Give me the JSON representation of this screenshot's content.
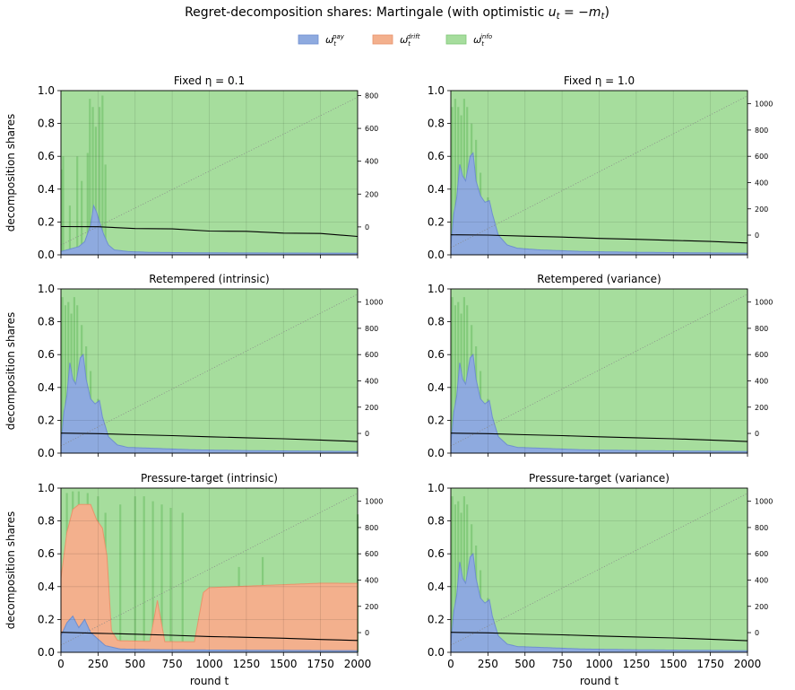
{
  "title": "Regret-decomposition shares: Martingale (with optimistic u_t = −m_t)",
  "title_parts": {
    "prefix": "Regret-decomposition shares: Martingale (with optimistic ",
    "u": "u",
    "t": "t",
    "eq": " = −",
    "m": "m",
    "t2": "t",
    "close": ")"
  },
  "legend": [
    {
      "symbol": "ω",
      "sub": "t",
      "sup": "pay",
      "color": "#8eaadf"
    },
    {
      "symbol": "ω",
      "sub": "t",
      "sup": "drift",
      "color": "#f3b08d"
    },
    {
      "symbol": "ω",
      "sub": "t",
      "sup": "info",
      "color": "#a6dd9d"
    }
  ],
  "colors": {
    "pay": "#8eaadf",
    "pay_edge": "#6f8fd0",
    "drift": "#f3b08d",
    "drift_edge": "#e9946c",
    "info": "#a6dd9d",
    "info_edge": "#7fc877",
    "line": "#000000",
    "dotted": "#888888"
  },
  "ylabel": "decomposition shares",
  "xlabel": "round t",
  "chart_data": [
    {
      "type": "area",
      "title": "Fixed η = 0.1",
      "xlim": [
        0,
        2000
      ],
      "ylim": [
        0,
        1.0
      ],
      "xticks": [
        0,
        250,
        500,
        750,
        1000,
        1250,
        1500,
        1750,
        2000
      ],
      "yticks": [
        0.0,
        0.2,
        0.4,
        0.6,
        0.8,
        1.0
      ],
      "y2lim": [
        -170,
        830
      ],
      "y2ticks": [
        0,
        200,
        400,
        600,
        800
      ],
      "stack_order": [
        "pay",
        "drift",
        "info"
      ],
      "pay": [
        [
          0,
          0.02
        ],
        [
          40,
          0.03
        ],
        [
          80,
          0.04
        ],
        [
          120,
          0.05
        ],
        [
          160,
          0.08
        ],
        [
          200,
          0.18
        ],
        [
          220,
          0.3
        ],
        [
          240,
          0.26
        ],
        [
          260,
          0.2
        ],
        [
          290,
          0.12
        ],
        [
          320,
          0.06
        ],
        [
          360,
          0.03
        ],
        [
          450,
          0.02
        ],
        [
          600,
          0.015
        ],
        [
          1000,
          0.012
        ],
        [
          2000,
          0.01
        ]
      ],
      "drift": [
        [
          0,
          0.0
        ],
        [
          2000,
          0.0
        ]
      ],
      "info_spikes": [
        [
          5,
          0.52
        ],
        [
          15,
          0.6
        ],
        [
          60,
          0.3
        ],
        [
          110,
          0.6
        ],
        [
          140,
          0.45
        ],
        [
          180,
          0.62
        ],
        [
          195,
          0.95
        ],
        [
          215,
          0.9
        ],
        [
          235,
          0.78
        ],
        [
          260,
          0.9
        ],
        [
          280,
          0.97
        ],
        [
          300,
          0.55
        ]
      ],
      "regret_line": [
        [
          0,
          2
        ],
        [
          250,
          1
        ],
        [
          500,
          -10
        ],
        [
          750,
          -12
        ],
        [
          1000,
          -25
        ],
        [
          1250,
          -27
        ],
        [
          1500,
          -38
        ],
        [
          1750,
          -40
        ],
        [
          2000,
          -58
        ]
      ],
      "dotted_line": [
        [
          0,
          -110
        ],
        [
          2000,
          790
        ]
      ]
    },
    {
      "type": "area",
      "title": "Fixed η = 1.0",
      "xlim": [
        0,
        2000
      ],
      "ylim": [
        0,
        1.0
      ],
      "xticks": [
        0,
        250,
        500,
        750,
        1000,
        1250,
        1500,
        1750,
        2000
      ],
      "yticks": [
        0.0,
        0.2,
        0.4,
        0.6,
        0.8,
        1.0
      ],
      "y2lim": [
        -150,
        1100
      ],
      "y2ticks": [
        0,
        200,
        400,
        600,
        800,
        1000
      ],
      "stack_order": [
        "pay",
        "drift",
        "info"
      ],
      "pay": [
        [
          0,
          0.05
        ],
        [
          20,
          0.25
        ],
        [
          40,
          0.35
        ],
        [
          60,
          0.55
        ],
        [
          80,
          0.48
        ],
        [
          100,
          0.45
        ],
        [
          130,
          0.6
        ],
        [
          150,
          0.62
        ],
        [
          170,
          0.45
        ],
        [
          200,
          0.36
        ],
        [
          230,
          0.32
        ],
        [
          260,
          0.33
        ],
        [
          280,
          0.25
        ],
        [
          320,
          0.12
        ],
        [
          380,
          0.06
        ],
        [
          450,
          0.04
        ],
        [
          600,
          0.03
        ],
        [
          900,
          0.02
        ],
        [
          1300,
          0.015
        ],
        [
          2000,
          0.01
        ]
      ],
      "drift": [
        [
          0,
          0.0
        ],
        [
          2000,
          0.0
        ]
      ],
      "info_spikes": [
        [
          10,
          0.9
        ],
        [
          30,
          0.95
        ],
        [
          50,
          0.9
        ],
        [
          70,
          0.85
        ],
        [
          90,
          0.95
        ],
        [
          110,
          0.9
        ],
        [
          140,
          0.8
        ],
        [
          170,
          0.7
        ],
        [
          200,
          0.5
        ],
        [
          250,
          0.35
        ]
      ],
      "regret_line": [
        [
          0,
          2
        ],
        [
          250,
          0
        ],
        [
          500,
          -8
        ],
        [
          750,
          -15
        ],
        [
          1000,
          -25
        ],
        [
          1250,
          -32
        ],
        [
          1500,
          -40
        ],
        [
          1750,
          -48
        ],
        [
          2000,
          -60
        ]
      ],
      "dotted_line": [
        [
          0,
          -95
        ],
        [
          2000,
          1060
        ]
      ]
    },
    {
      "type": "area",
      "title": "Retempered (intrinsic)",
      "xlim": [
        0,
        2000
      ],
      "ylim": [
        0,
        1.0
      ],
      "xticks": [
        0,
        250,
        500,
        750,
        1000,
        1250,
        1500,
        1750,
        2000
      ],
      "yticks": [
        0.0,
        0.2,
        0.4,
        0.6,
        0.8,
        1.0
      ],
      "y2lim": [
        -150,
        1100
      ],
      "y2ticks": [
        0,
        200,
        400,
        600,
        800,
        1000
      ],
      "stack_order": [
        "pay",
        "drift",
        "info"
      ],
      "pay": [
        [
          0,
          0.05
        ],
        [
          20,
          0.25
        ],
        [
          40,
          0.35
        ],
        [
          60,
          0.55
        ],
        [
          80,
          0.45
        ],
        [
          100,
          0.42
        ],
        [
          130,
          0.58
        ],
        [
          150,
          0.6
        ],
        [
          170,
          0.45
        ],
        [
          200,
          0.33
        ],
        [
          230,
          0.3
        ],
        [
          260,
          0.32
        ],
        [
          280,
          0.22
        ],
        [
          320,
          0.1
        ],
        [
          380,
          0.05
        ],
        [
          450,
          0.035
        ],
        [
          600,
          0.03
        ],
        [
          900,
          0.02
        ],
        [
          1300,
          0.015
        ],
        [
          2000,
          0.01
        ]
      ],
      "drift": [
        [
          0,
          0.0
        ],
        [
          2000,
          0.0
        ]
      ],
      "info_spikes": [
        [
          10,
          0.95
        ],
        [
          30,
          0.9
        ],
        [
          50,
          0.92
        ],
        [
          70,
          0.85
        ],
        [
          90,
          0.95
        ],
        [
          110,
          0.9
        ],
        [
          140,
          0.78
        ],
        [
          170,
          0.65
        ],
        [
          200,
          0.5
        ],
        [
          250,
          0.33
        ]
      ],
      "regret_line": [
        [
          0,
          2
        ],
        [
          250,
          -2
        ],
        [
          500,
          -10
        ],
        [
          750,
          -17
        ],
        [
          1000,
          -26
        ],
        [
          1250,
          -33
        ],
        [
          1500,
          -41
        ],
        [
          1750,
          -50
        ],
        [
          2000,
          -62
        ]
      ],
      "dotted_line": [
        [
          0,
          -95
        ],
        [
          2000,
          1060
        ]
      ]
    },
    {
      "type": "area",
      "title": "Retempered (variance)",
      "xlim": [
        0,
        2000
      ],
      "ylim": [
        0,
        1.0
      ],
      "xticks": [
        0,
        250,
        500,
        750,
        1000,
        1250,
        1500,
        1750,
        2000
      ],
      "yticks": [
        0.0,
        0.2,
        0.4,
        0.6,
        0.8,
        1.0
      ],
      "y2lim": [
        -150,
        1100
      ],
      "y2ticks": [
        0,
        200,
        400,
        600,
        800,
        1000
      ],
      "stack_order": [
        "pay",
        "drift",
        "info"
      ],
      "pay": [
        [
          0,
          0.05
        ],
        [
          20,
          0.25
        ],
        [
          40,
          0.35
        ],
        [
          60,
          0.55
        ],
        [
          80,
          0.45
        ],
        [
          100,
          0.42
        ],
        [
          130,
          0.58
        ],
        [
          150,
          0.6
        ],
        [
          170,
          0.45
        ],
        [
          200,
          0.33
        ],
        [
          230,
          0.3
        ],
        [
          260,
          0.32
        ],
        [
          280,
          0.22
        ],
        [
          320,
          0.1
        ],
        [
          380,
          0.05
        ],
        [
          450,
          0.035
        ],
        [
          600,
          0.03
        ],
        [
          900,
          0.02
        ],
        [
          1300,
          0.015
        ],
        [
          2000,
          0.01
        ]
      ],
      "drift": [
        [
          0,
          0.0
        ],
        [
          2000,
          0.0
        ]
      ],
      "info_spikes": [
        [
          10,
          0.95
        ],
        [
          30,
          0.9
        ],
        [
          50,
          0.92
        ],
        [
          70,
          0.85
        ],
        [
          90,
          0.95
        ],
        [
          110,
          0.9
        ],
        [
          140,
          0.78
        ],
        [
          170,
          0.65
        ],
        [
          200,
          0.5
        ],
        [
          250,
          0.33
        ]
      ],
      "regret_line": [
        [
          0,
          2
        ],
        [
          250,
          -2
        ],
        [
          500,
          -10
        ],
        [
          750,
          -17
        ],
        [
          1000,
          -26
        ],
        [
          1250,
          -33
        ],
        [
          1500,
          -41
        ],
        [
          1750,
          -50
        ],
        [
          2000,
          -62
        ]
      ],
      "dotted_line": [
        [
          0,
          -95
        ],
        [
          2000,
          1060
        ]
      ]
    },
    {
      "type": "area",
      "title": "Pressure-target (intrinsic)",
      "xlim": [
        0,
        2000
      ],
      "ylim": [
        0,
        1.0
      ],
      "xticks": [
        0,
        250,
        500,
        750,
        1000,
        1250,
        1500,
        1750,
        2000
      ],
      "yticks": [
        0.0,
        0.2,
        0.4,
        0.6,
        0.8,
        1.0
      ],
      "y2lim": [
        -150,
        1100
      ],
      "y2ticks": [
        0,
        200,
        400,
        600,
        800,
        1000
      ],
      "stack_order": [
        "pay",
        "drift",
        "info"
      ],
      "pay": [
        [
          0,
          0.1
        ],
        [
          40,
          0.18
        ],
        [
          80,
          0.22
        ],
        [
          120,
          0.15
        ],
        [
          160,
          0.2
        ],
        [
          200,
          0.12
        ],
        [
          250,
          0.08
        ],
        [
          300,
          0.04
        ],
        [
          400,
          0.02
        ],
        [
          700,
          0.015
        ],
        [
          2000,
          0.01
        ]
      ],
      "drift": [
        [
          0,
          0.35
        ],
        [
          40,
          0.55
        ],
        [
          80,
          0.65
        ],
        [
          120,
          0.75
        ],
        [
          160,
          0.7
        ],
        [
          200,
          0.78
        ],
        [
          240,
          0.72
        ],
        [
          280,
          0.7
        ],
        [
          310,
          0.55
        ],
        [
          340,
          0.1
        ],
        [
          380,
          0.05
        ],
        [
          600,
          0.05
        ],
        [
          650,
          0.3
        ],
        [
          700,
          0.05
        ],
        [
          900,
          0.05
        ],
        [
          960,
          0.35
        ],
        [
          1000,
          0.38
        ],
        [
          1250,
          0.39
        ],
        [
          1500,
          0.4
        ],
        [
          1750,
          0.41
        ],
        [
          2000,
          0.41
        ]
      ],
      "info_spikes": [
        [
          40,
          0.97
        ],
        [
          80,
          0.98
        ],
        [
          120,
          0.98
        ],
        [
          180,
          0.97
        ],
        [
          250,
          0.95
        ],
        [
          300,
          0.85
        ],
        [
          400,
          0.9
        ],
        [
          500,
          0.95
        ],
        [
          560,
          0.95
        ],
        [
          620,
          0.92
        ],
        [
          680,
          0.9
        ],
        [
          740,
          0.88
        ],
        [
          820,
          0.85
        ],
        [
          1200,
          0.52
        ],
        [
          1360,
          0.58
        ],
        [
          2000,
          0.84
        ]
      ],
      "regret_line": [
        [
          0,
          2
        ],
        [
          250,
          -5
        ],
        [
          500,
          -12
        ],
        [
          750,
          -20
        ],
        [
          1000,
          -30
        ],
        [
          1250,
          -36
        ],
        [
          1500,
          -43
        ],
        [
          1750,
          -52
        ],
        [
          2000,
          -60
        ]
      ],
      "dotted_line": [
        [
          0,
          -95
        ],
        [
          2000,
          1060
        ]
      ]
    },
    {
      "type": "area",
      "title": "Pressure-target (variance)",
      "xlim": [
        0,
        2000
      ],
      "ylim": [
        0,
        1.0
      ],
      "xticks": [
        0,
        250,
        500,
        750,
        1000,
        1250,
        1500,
        1750,
        2000
      ],
      "yticks": [
        0.0,
        0.2,
        0.4,
        0.6,
        0.8,
        1.0
      ],
      "y2lim": [
        -150,
        1100
      ],
      "y2ticks": [
        0,
        200,
        400,
        600,
        800,
        1000
      ],
      "stack_order": [
        "pay",
        "drift",
        "info"
      ],
      "pay": [
        [
          0,
          0.05
        ],
        [
          20,
          0.25
        ],
        [
          40,
          0.35
        ],
        [
          60,
          0.55
        ],
        [
          80,
          0.45
        ],
        [
          100,
          0.42
        ],
        [
          130,
          0.58
        ],
        [
          150,
          0.6
        ],
        [
          170,
          0.45
        ],
        [
          200,
          0.33
        ],
        [
          230,
          0.3
        ],
        [
          260,
          0.32
        ],
        [
          280,
          0.22
        ],
        [
          320,
          0.1
        ],
        [
          380,
          0.05
        ],
        [
          450,
          0.035
        ],
        [
          600,
          0.03
        ],
        [
          900,
          0.02
        ],
        [
          1300,
          0.015
        ],
        [
          2000,
          0.01
        ]
      ],
      "drift": [
        [
          0,
          0.0
        ],
        [
          2000,
          0.0
        ]
      ],
      "info_spikes": [
        [
          10,
          0.95
        ],
        [
          30,
          0.9
        ],
        [
          50,
          0.92
        ],
        [
          70,
          0.85
        ],
        [
          90,
          0.95
        ],
        [
          110,
          0.9
        ],
        [
          140,
          0.78
        ],
        [
          170,
          0.65
        ],
        [
          200,
          0.5
        ],
        [
          250,
          0.33
        ]
      ],
      "regret_line": [
        [
          0,
          2
        ],
        [
          250,
          -2
        ],
        [
          500,
          -10
        ],
        [
          750,
          -17
        ],
        [
          1000,
          -26
        ],
        [
          1250,
          -33
        ],
        [
          1500,
          -41
        ],
        [
          1750,
          -50
        ],
        [
          2000,
          -62
        ]
      ],
      "dotted_line": [
        [
          0,
          -95
        ],
        [
          2000,
          1060
        ]
      ]
    }
  ]
}
